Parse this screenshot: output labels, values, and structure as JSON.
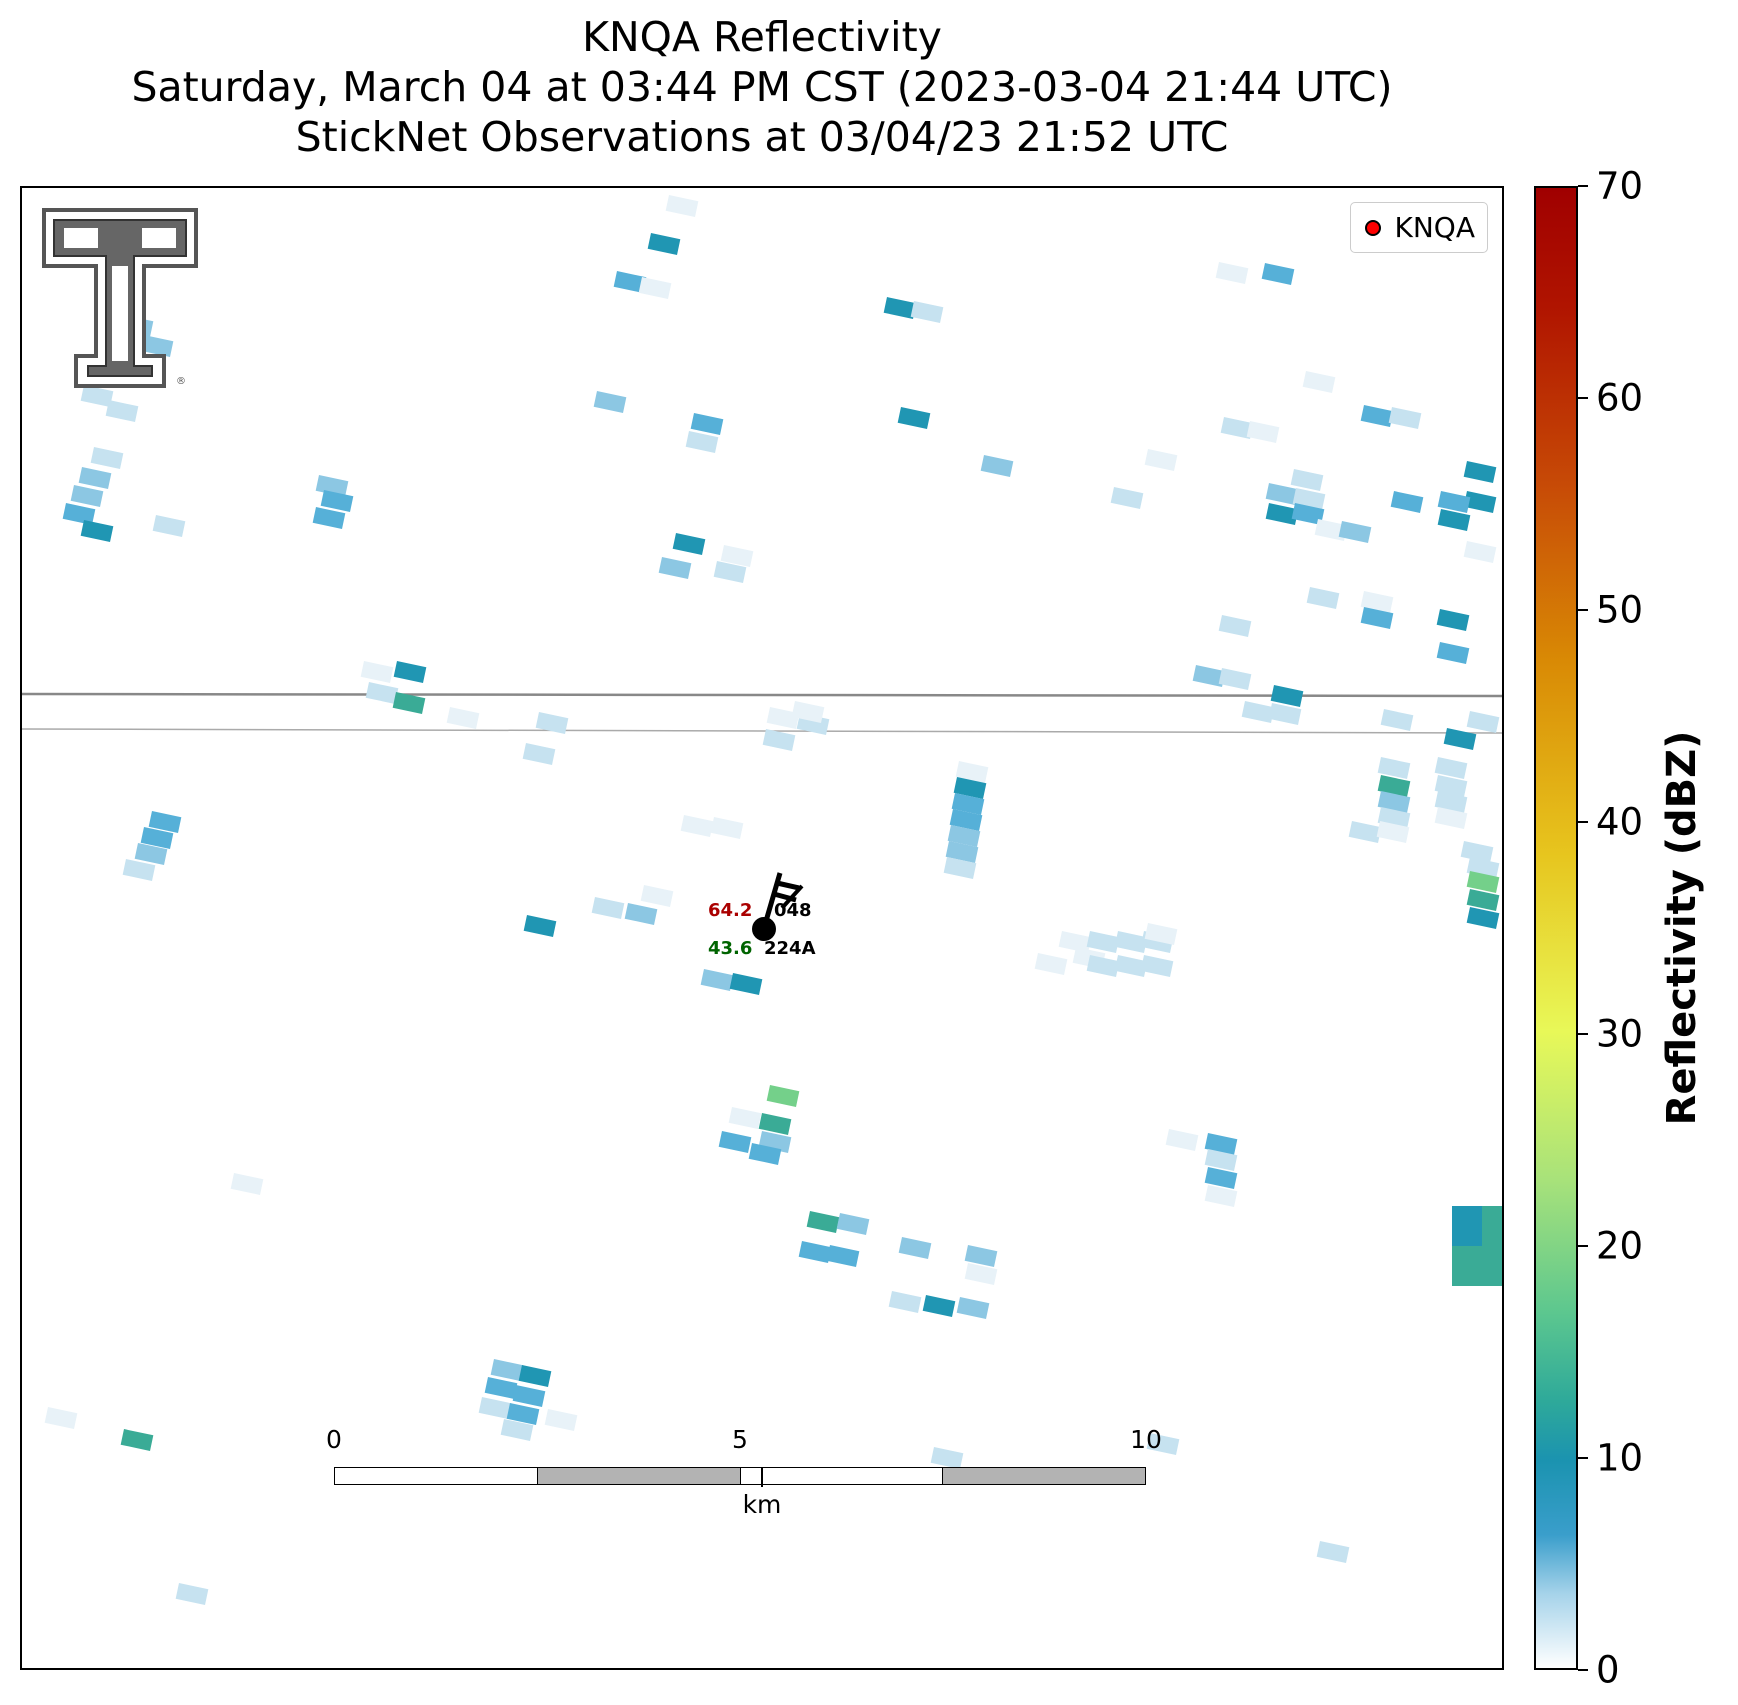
{
  "title": {
    "line1": "KNQA Reflectivity",
    "line2": "Saturday, March 04 at 03:44 PM CST (2023-03-04 21:44 UTC)",
    "line3": "StickNet Observations at 03/04/23 21:52 UTC"
  },
  "legend": {
    "label": "KNQA",
    "marker_color": "#ff0000"
  },
  "station": {
    "temperature": "64.2",
    "dewpoint": "43.6",
    "pressure_code": "048",
    "id": "224A"
  },
  "scale_bar": {
    "labels": [
      "0",
      "5",
      "10"
    ],
    "unit": "km"
  },
  "colorbar": {
    "title": "Reflectivity (dBZ)",
    "ticks": [
      "0",
      "10",
      "20",
      "30",
      "40",
      "50",
      "60",
      "70"
    ],
    "min": 0,
    "max": 70
  },
  "colors": {
    "very_light": "#e8f2f8",
    "light": "#c6e2f0",
    "light_blue": "#8cc7e3",
    "mid_blue": "#56b0d8",
    "teal": "#2096b3",
    "sea_green": "#3aab96",
    "green": "#74d08a"
  }
}
